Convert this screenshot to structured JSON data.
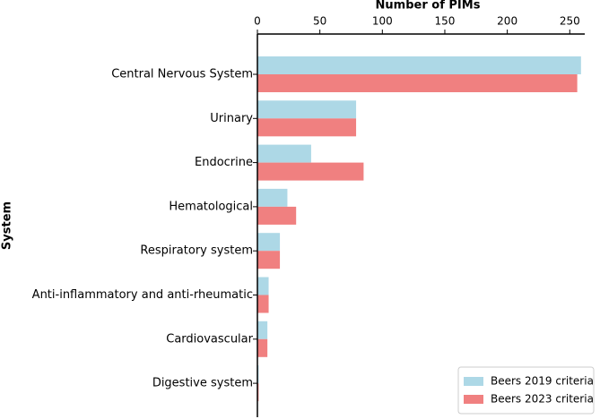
{
  "chart_data": {
    "type": "hbar",
    "x_label": "Number of PIMs",
    "y_label": "System",
    "categories": [
      "Central Nervous System",
      "Urinary",
      "Endocrine",
      "Hematological",
      "Respiratory system",
      "Anti-inflammatory and anti-rheumatic",
      "Cardiovascular",
      "Digestive system"
    ],
    "series": [
      {
        "name": "Beers 2019 criteria",
        "color": "#add8e6",
        "values": [
          259,
          79,
          43,
          24,
          18,
          9,
          8,
          1
        ]
      },
      {
        "name": "Beers 2023 criteria",
        "color": "#f08080",
        "values": [
          256,
          79,
          85,
          31,
          18,
          9,
          8,
          1
        ]
      }
    ],
    "xlim": [
      0,
      262
    ],
    "xticks": [
      0,
      50,
      100,
      150,
      200,
      250
    ],
    "legend": "lower right"
  }
}
